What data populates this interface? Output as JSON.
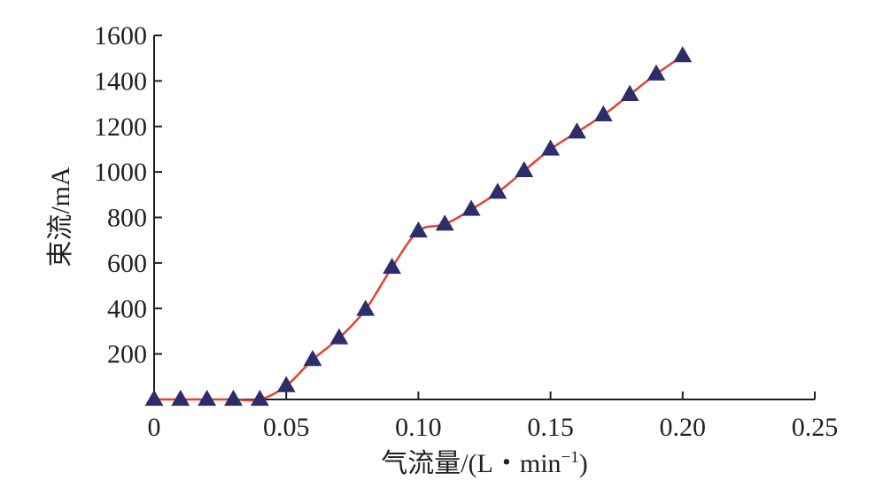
{
  "chart_data": {
    "type": "line",
    "title": "",
    "xlabel": "气流量/(L・min",
    "xlabel_sup": "−1",
    "xlabel_close": ")",
    "ylabel": "束流/mA",
    "xlim": [
      0,
      0.25
    ],
    "ylim": [
      0,
      1600
    ],
    "x_ticks": [
      0,
      0.05,
      0.1,
      0.15,
      0.2,
      0.25
    ],
    "x_tick_labels": [
      "0",
      "0.05",
      "0.10",
      "0.15",
      "0.20",
      "0.25"
    ],
    "y_ticks": [
      200,
      400,
      600,
      800,
      1000,
      1200,
      1400,
      1600
    ],
    "y_tick_labels": [
      "200",
      "400",
      "600",
      "800",
      "1000",
      "1200",
      "1400",
      "1600"
    ],
    "grid": false,
    "legend": "none",
    "series": [
      {
        "x": [
          0,
          0.01,
          0.02,
          0.03,
          0.04,
          0.05,
          0.06,
          0.07,
          0.08,
          0.09,
          0.1,
          0.11,
          0.12,
          0.13,
          0.14,
          0.15,
          0.16,
          0.17,
          0.18,
          0.19,
          0.2
        ],
        "values": [
          0,
          0,
          0,
          0,
          0,
          60,
          175,
          270,
          395,
          580,
          740,
          770,
          835,
          910,
          1005,
          1100,
          1175,
          1250,
          1340,
          1430,
          1510
        ],
        "line_color": "#e8412f",
        "marker": "triangle",
        "marker_color": "#2e2d6b"
      }
    ]
  }
}
